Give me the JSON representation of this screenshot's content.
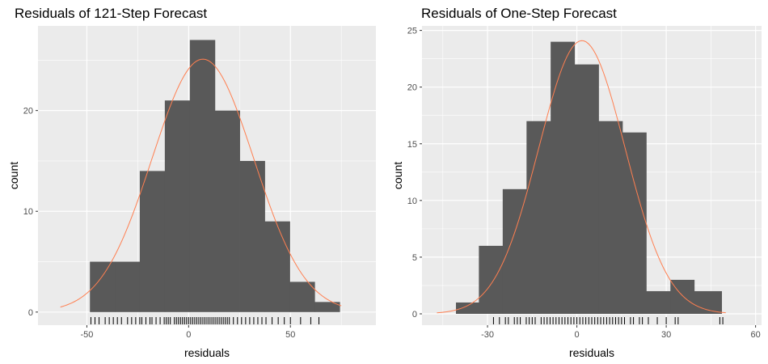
{
  "chart_data": [
    {
      "type": "bar",
      "title": "Residuals of 121-Step Forecast",
      "xlabel": "residuals",
      "ylabel": "count",
      "xlim": [
        -74,
        92
      ],
      "ylim": [
        -1.3,
        28.4
      ],
      "xticks": [
        -50,
        0,
        50
      ],
      "yticks": [
        0,
        10,
        20
      ],
      "bin_edges": [
        -48.5,
        -36.2,
        -24.0,
        -11.7,
        0.6,
        12.9,
        25.1,
        37.4,
        49.7,
        61.9,
        74.2
      ],
      "values": [
        5,
        5,
        14,
        21,
        27,
        20,
        15,
        9,
        3,
        1
      ],
      "density_curve": {
        "mean": 7.0,
        "sd": 25.0,
        "peak": 25.1,
        "range": [
          -63,
          75
        ]
      },
      "rug_x": [
        -48,
        -46,
        -44,
        -41,
        -39,
        -37,
        -35,
        -33,
        -30,
        -28,
        -26,
        -24,
        -23,
        -21,
        -19,
        -18,
        -16,
        -14,
        -12,
        -11,
        -10,
        -9,
        -7,
        -6,
        -5,
        -4,
        -3,
        -2,
        -1,
        0,
        1,
        2,
        3,
        4,
        5,
        6,
        7,
        8,
        9,
        10,
        11,
        12,
        13,
        14,
        15,
        16,
        17,
        18,
        19,
        20,
        22,
        24,
        26,
        28,
        30,
        32,
        34,
        36,
        38,
        41,
        44,
        47,
        50,
        55,
        60,
        64
      ]
    },
    {
      "type": "bar",
      "title": "Residuals of One-Step Forecast",
      "xlabel": "residuals",
      "ylabel": "count",
      "xlim": [
        -52,
        62
      ],
      "ylim": [
        -1.0,
        25.4
      ],
      "xticks": [
        -30,
        0,
        30,
        60
      ],
      "yticks": [
        0,
        5,
        10,
        15,
        20,
        25
      ],
      "bin_edges": [
        -40.6,
        -32.9,
        -24.9,
        -16.9,
        -8.8,
        -0.8,
        7.3,
        15.3,
        23.3,
        31.4,
        39.4,
        48.6
      ],
      "values": [
        1,
        6,
        11,
        17,
        24,
        22,
        17,
        16,
        2,
        3,
        2
      ],
      "density_curve": {
        "mean": 1.7,
        "sd": 14.5,
        "peak": 24.1,
        "range": [
          -47,
          50
        ]
      },
      "rug_x": [
        -28,
        -26,
        -24,
        -23,
        -21,
        -20,
        -19,
        -17,
        -16,
        -15,
        -14,
        -12,
        -11,
        -10,
        -9,
        -8,
        -7,
        -6,
        -5,
        -4,
        -3,
        -2,
        -1,
        0,
        1,
        2,
        3,
        4,
        5,
        6,
        7,
        8,
        9,
        10,
        11,
        12,
        13,
        14,
        15,
        16,
        18,
        19,
        21,
        22,
        24,
        27,
        30,
        33,
        34,
        48,
        49
      ]
    }
  ],
  "colors": {
    "panel_bg": "#EBEBEB",
    "grid_major": "#FFFFFF",
    "bar_fill": "#595959",
    "density_line": "#FF7F50",
    "rug": "#000000"
  }
}
